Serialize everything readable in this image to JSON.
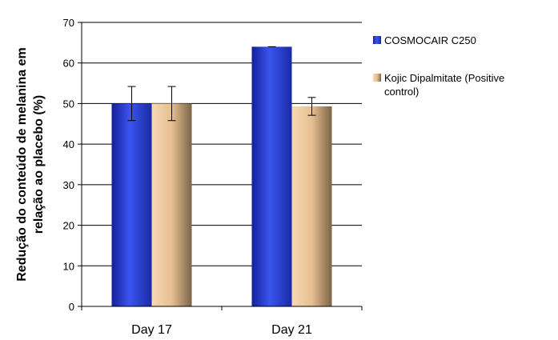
{
  "chart_data": {
    "type": "bar",
    "title": "",
    "xlabel": "",
    "ylabel_lines": [
      "Redução do conteúdo de melanina em",
      "relação ao placebo (%)"
    ],
    "categories": [
      "Day 17",
      "Day 21"
    ],
    "ylim": [
      0,
      70
    ],
    "yticks": [
      0,
      10,
      20,
      30,
      40,
      50,
      60,
      70
    ],
    "grid": "horizontal",
    "legend_position": "right",
    "series": [
      {
        "name": "COSMOCAIR C250",
        "legend_lines": [
          "COSMOCAIR C250"
        ],
        "values": [
          50,
          64
        ],
        "errors": [
          4.2,
          0
        ],
        "color": "#2e44d8"
      },
      {
        "name": "Kojic Dipalmitate (Positive control)",
        "legend_lines": [
          "Kojic Dipalmitate (Positive",
          "control)"
        ],
        "values": [
          50,
          49.3
        ],
        "errors": [
          4.2,
          2.2
        ],
        "color": "#e8c49a"
      }
    ]
  }
}
